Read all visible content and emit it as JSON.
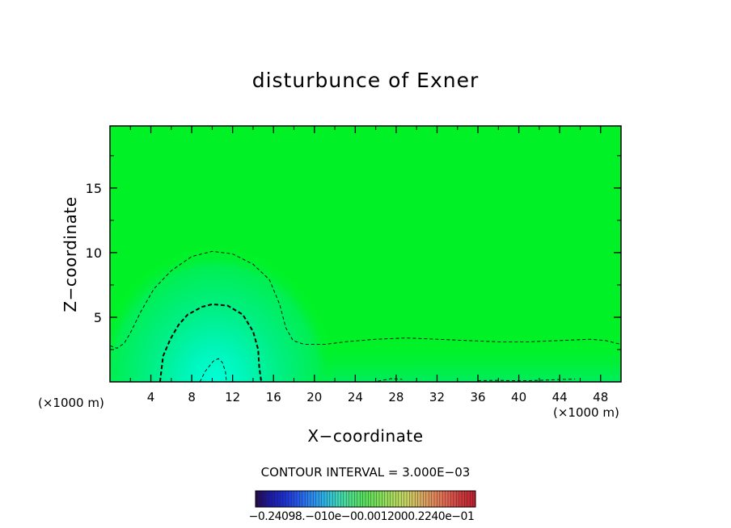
{
  "chart_data": {
    "type": "heatmap",
    "title": "disturbunce of Exner",
    "xlabel": "X−coordinate",
    "ylabel": "Z−coordinate",
    "x_unit": "(×1000 m)",
    "xlim": [
      0,
      50
    ],
    "ylim": [
      0,
      19.8
    ],
    "x_ticks": [
      "4",
      "8",
      "12",
      "16",
      "20",
      "24",
      "28",
      "32",
      "36",
      "40",
      "44",
      "48"
    ],
    "y_ticks": [
      "5",
      "10",
      "15"
    ],
    "contour_interval_label": "CONTOUR INTERVAL = 3.000E−03",
    "contour_interval": 0.003,
    "background_color": "#00f226",
    "contour_color": "#000000",
    "contours": [
      {
        "level": "outer",
        "style": "thin-dashed",
        "points": [
          [
            0,
            2.8
          ],
          [
            0.7,
            2.6
          ],
          [
            1.4,
            3.0
          ],
          [
            2.0,
            3.8
          ],
          [
            3.0,
            5.4
          ],
          [
            4.3,
            7.2
          ],
          [
            6,
            8.6
          ],
          [
            8,
            9.7
          ],
          [
            10,
            10.1
          ],
          [
            12,
            9.9
          ],
          [
            14,
            9.1
          ],
          [
            15.6,
            7.9
          ],
          [
            16.6,
            6.0
          ],
          [
            17.2,
            4.2
          ],
          [
            17.9,
            3.2
          ],
          [
            19,
            2.9
          ],
          [
            21,
            2.9
          ],
          [
            23,
            3.1
          ],
          [
            26,
            3.3
          ],
          [
            29,
            3.4
          ],
          [
            32,
            3.3
          ],
          [
            35,
            3.2
          ],
          [
            38,
            3.1
          ],
          [
            41,
            3.1
          ],
          [
            44,
            3.2
          ],
          [
            47,
            3.3
          ],
          [
            48.5,
            3.2
          ],
          [
            50,
            2.9
          ]
        ]
      },
      {
        "level": "middle",
        "style": "thick-dashed",
        "points": [
          [
            4.9,
            0
          ],
          [
            5.2,
            2.0
          ],
          [
            5.9,
            3.3
          ],
          [
            6.7,
            4.4
          ],
          [
            7.6,
            5.2
          ],
          [
            9,
            5.8
          ],
          [
            10,
            6.0
          ],
          [
            11.5,
            5.9
          ],
          [
            13,
            5.2
          ],
          [
            14,
            3.9
          ],
          [
            14.5,
            2.5
          ],
          [
            14.6,
            1.2
          ],
          [
            14.8,
            0
          ]
        ]
      },
      {
        "level": "inner",
        "style": "thin-dashed",
        "points": [
          [
            8.8,
            0
          ],
          [
            9.3,
            0.8
          ],
          [
            10.1,
            1.6
          ],
          [
            10.6,
            1.8
          ],
          [
            11.0,
            1.5
          ],
          [
            11.3,
            0.8
          ],
          [
            11.4,
            0
          ]
        ]
      },
      {
        "level": "bottom-right",
        "style": "thin-dashed",
        "points": [
          [
            36,
            0.1
          ],
          [
            38,
            0.12
          ],
          [
            40,
            0.08
          ],
          [
            42,
            0.12
          ],
          [
            44,
            0.18
          ],
          [
            45.5,
            0.22
          ]
        ]
      },
      {
        "level": "bottom-mid",
        "style": "thin-dashed",
        "points": [
          [
            26.2,
            0.05
          ],
          [
            27.5,
            0.25
          ],
          [
            28.6,
            0.2
          ]
        ]
      }
    ],
    "colorbar": {
      "labels_text": "−0.24098.−010e−00.0012000.2240e−01",
      "colors": [
        "#250a50",
        "#1a1aa8",
        "#1c2ed0",
        "#2456e8",
        "#2b88f0",
        "#2bb4e6",
        "#3cd8b8",
        "#4ee082",
        "#58e058",
        "#7ee058",
        "#a8dc5c",
        "#c8d462",
        "#d8b060",
        "#e08a5a",
        "#e06250",
        "#cc3a3a",
        "#c22030"
      ]
    }
  }
}
